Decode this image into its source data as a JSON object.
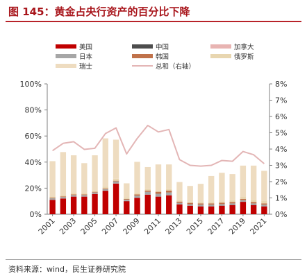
{
  "title": "图 145：黄金占央行资产的百分比下降",
  "source": "资料来源：wind，民生证券研究院",
  "chart_data": {
    "type": "bar",
    "stacked": true,
    "categories": [
      "2001",
      "2002",
      "2003",
      "2004",
      "2005",
      "2006",
      "2007",
      "2008",
      "2009",
      "2010",
      "2011",
      "2012",
      "2013",
      "2014",
      "2015",
      "2016",
      "2017",
      "2018",
      "2019",
      "2020",
      "2021"
    ],
    "x_tick_labels": [
      "2001",
      "2003",
      "2005",
      "2007",
      "2009",
      "2011",
      "2013",
      "2015",
      "2017",
      "2019",
      "2021"
    ],
    "left_axis": {
      "min": 0,
      "max": 100,
      "ticks": [
        "0%",
        "20%",
        "40%",
        "60%",
        "80%",
        "100%"
      ]
    },
    "right_axis": {
      "min": 0,
      "max": 8,
      "ticks": [
        "0%",
        "1%",
        "2%",
        "3%",
        "4%",
        "5%",
        "6%",
        "7%",
        "8%"
      ]
    },
    "series": [
      {
        "name": "美国",
        "color": "#c00000",
        "axis": "left",
        "values": [
          11,
          12,
          13.5,
          13.5,
          15.5,
          18,
          23.5,
          10,
          12.5,
          15,
          13.5,
          14.5,
          7.5,
          6.5,
          6,
          6,
          6.5,
          7,
          9.5,
          7,
          6
        ]
      },
      {
        "name": "中国",
        "color": "#4d4d4d",
        "axis": "left",
        "values": [
          0.1,
          0.1,
          0.1,
          0.1,
          0.1,
          0.1,
          0.1,
          0.1,
          0.1,
          0.1,
          0.1,
          0.1,
          0.1,
          0.1,
          0.2,
          0.2,
          0.2,
          0.2,
          0.2,
          0.2,
          0.2
        ]
      },
      {
        "name": "加拿大",
        "color": "#e8b4b2",
        "axis": "left",
        "values": [
          0.1,
          0.1,
          0.1,
          0.1,
          0.1,
          0.1,
          0.1,
          0.1,
          0.1,
          0.1,
          0.1,
          0.1,
          0.1,
          0.1,
          0.1,
          0.1,
          0.1,
          0.1,
          0.1,
          0.1,
          0.1
        ]
      },
      {
        "name": "日本",
        "color": "#a6a6a6",
        "axis": "left",
        "values": [
          1,
          1,
          1,
          1,
          1,
          1,
          1.5,
          1,
          1.5,
          2,
          2,
          2,
          1,
          1,
          1,
          1,
          1,
          1,
          1,
          1,
          1
        ]
      },
      {
        "name": "韩国",
        "color": "#c0724a",
        "axis": "left",
        "values": [
          0.5,
          0.5,
          0.5,
          0.5,
          0.5,
          0.5,
          0.5,
          0.5,
          1,
          1,
          1.5,
          1.5,
          1,
          1,
          1,
          1,
          1,
          1,
          1,
          1,
          1
        ]
      },
      {
        "name": "俄罗斯",
        "color": "#e8d6b0",
        "axis": "left",
        "values": [
          1,
          1,
          1,
          1,
          1,
          1.5,
          1.5,
          1,
          1,
          1,
          1,
          1,
          1,
          1,
          1,
          1,
          1,
          1.5,
          1.5,
          2,
          2
        ]
      },
      {
        "name": "瑞士",
        "color": "#eedcc0",
        "axis": "left",
        "values": [
          27,
          33,
          29,
          23,
          27,
          37,
          30,
          11,
          24,
          17,
          20,
          19,
          14,
          12,
          14,
          20,
          22,
          20,
          24,
          26,
          23
        ]
      },
      {
        "name": "总和（右轴）",
        "color": "#e3b5b5",
        "axis": "right",
        "type": "line",
        "values": [
          3.9,
          4.35,
          4.45,
          3.98,
          4.05,
          4.95,
          5.3,
          3.7,
          4.65,
          5.45,
          5.05,
          5.2,
          3.35,
          3,
          2.95,
          3,
          3.3,
          3.25,
          3.85,
          3.65,
          3.1
        ]
      }
    ],
    "legend_position": "top",
    "grid": false
  }
}
